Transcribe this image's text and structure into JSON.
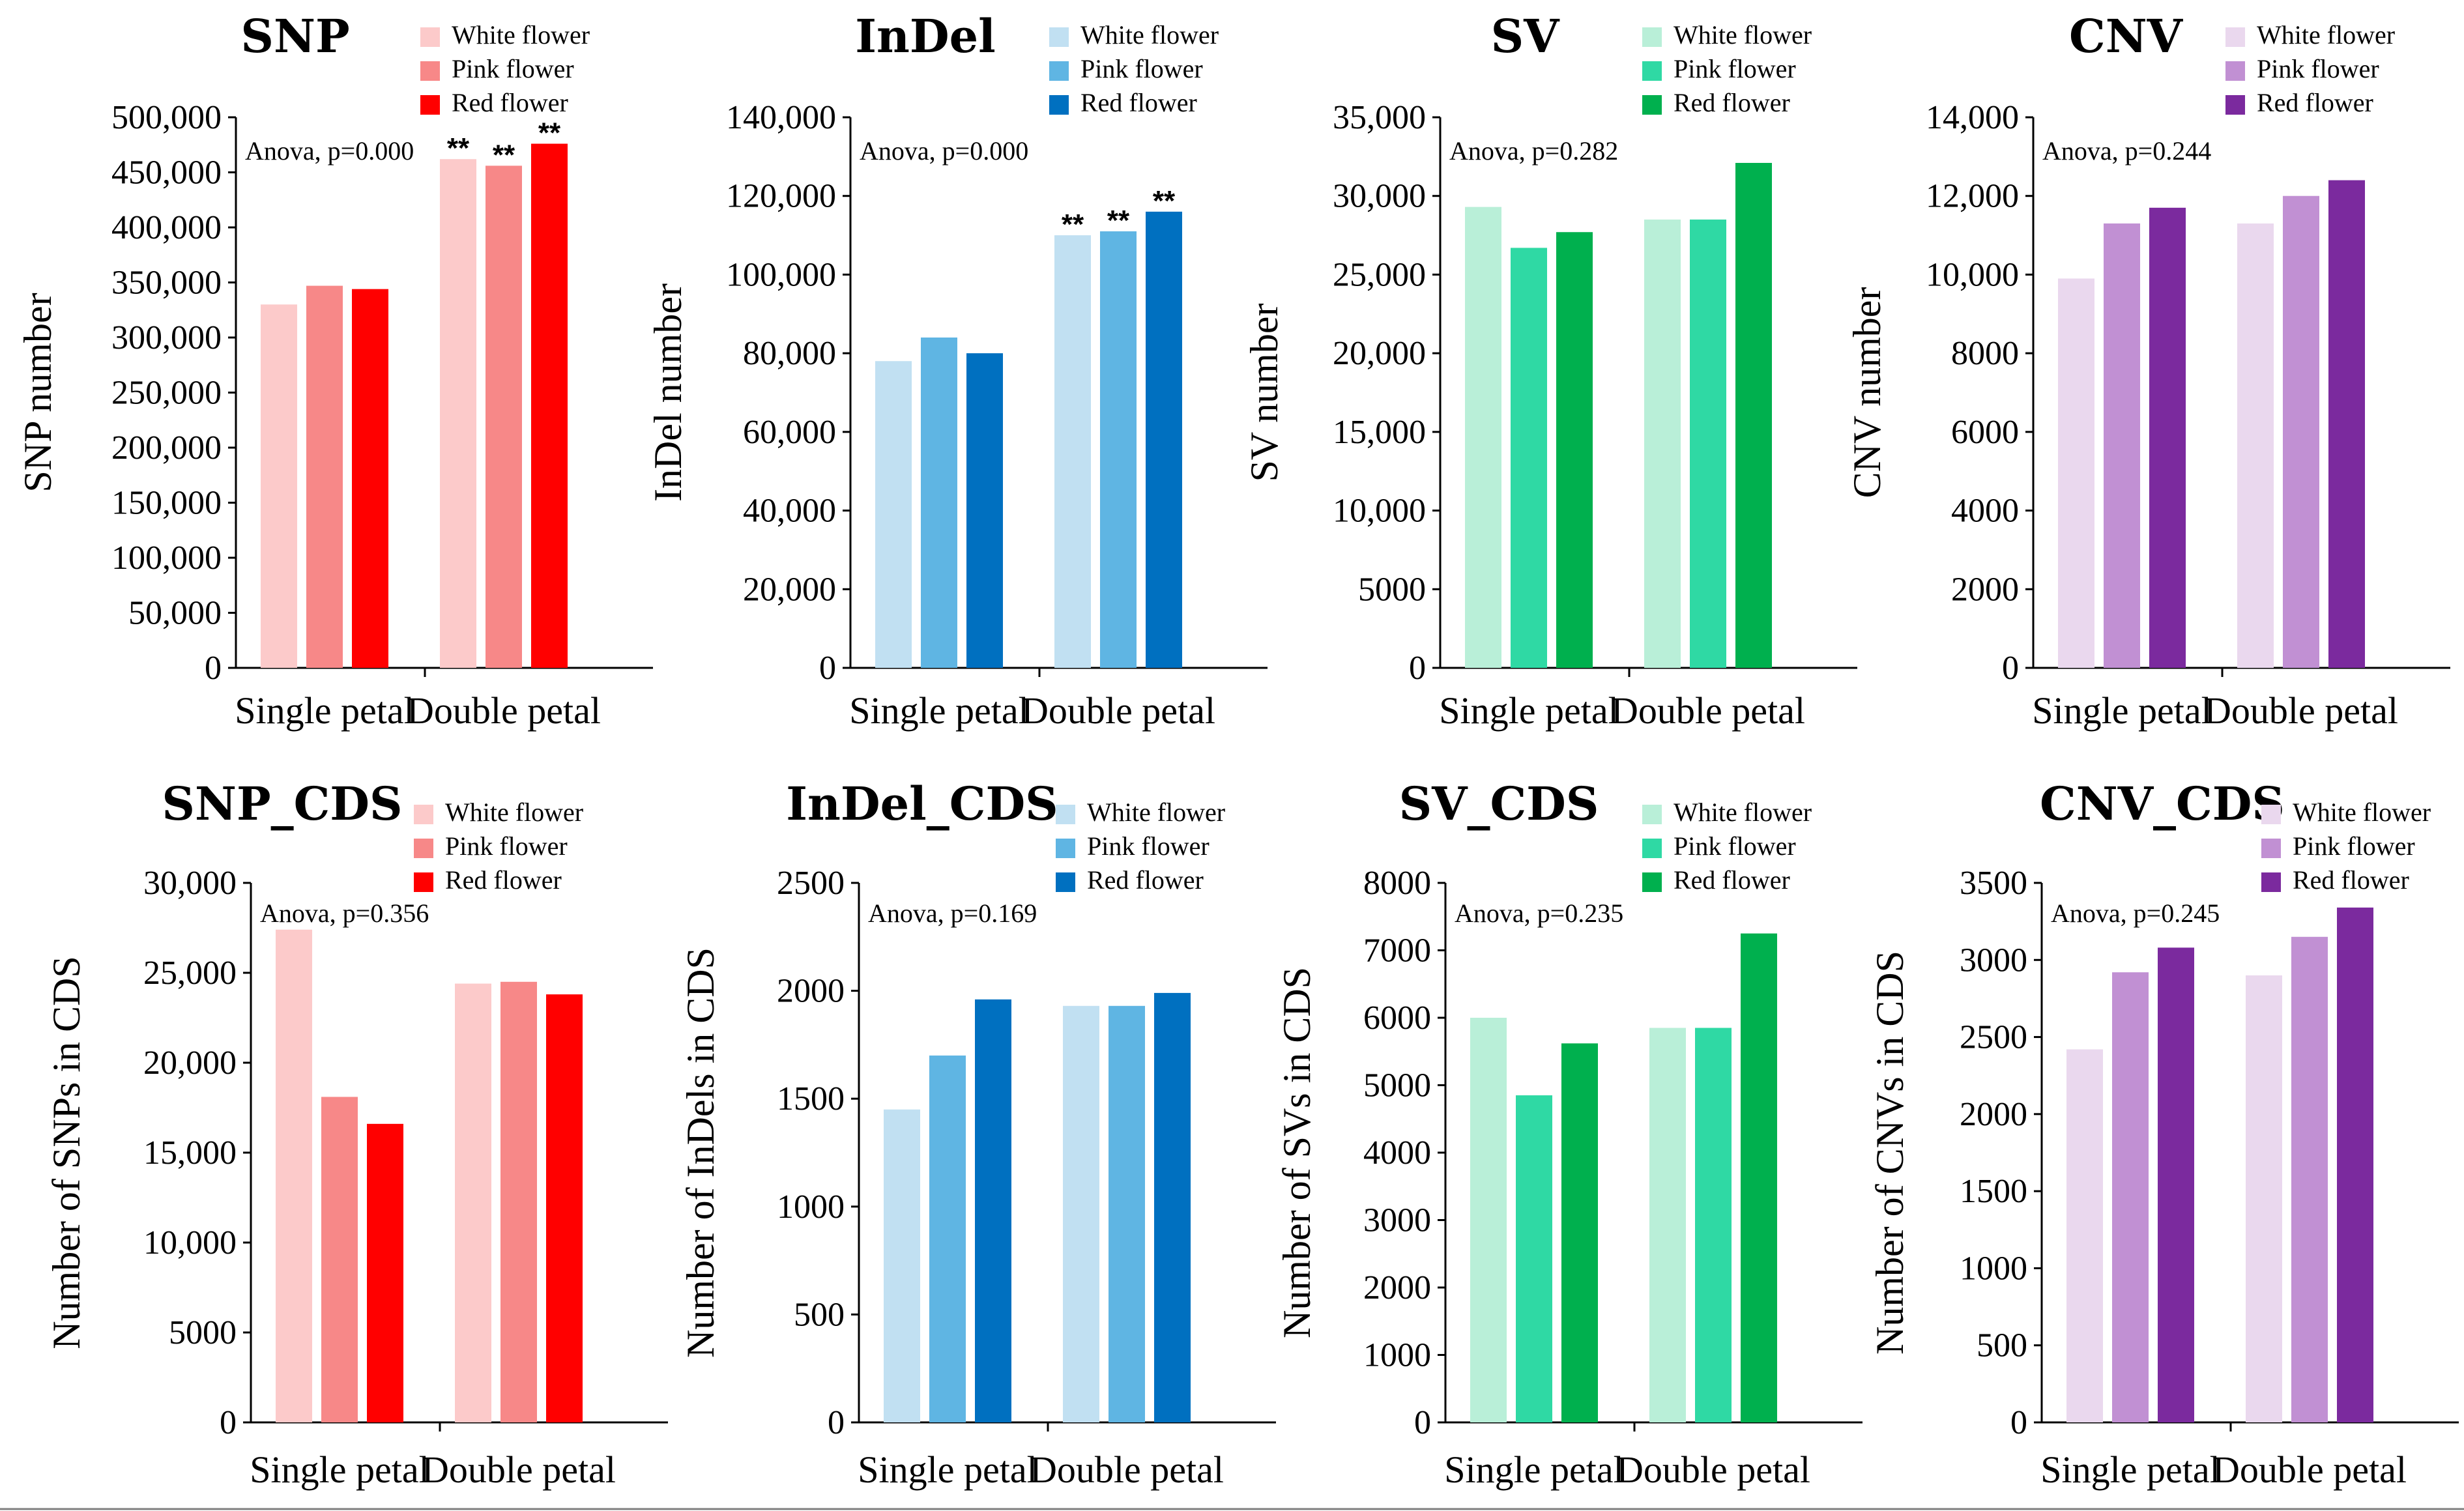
{
  "chart_data": [
    {
      "id": "snp",
      "type": "bar",
      "title": "SNP",
      "ylabel": "SNP number",
      "categories": [
        "Single petal",
        "Double petal"
      ],
      "ylim": [
        0,
        500000
      ],
      "ticks": [
        "0",
        "50,000",
        "100,000",
        "150,000",
        "200,000",
        "250,000",
        "300,000",
        "350,000",
        "400,000",
        "450,000",
        "500,000"
      ],
      "anova": "Anova, p=0.000",
      "legend": [
        "White flower",
        "Pink flower",
        "Red flower"
      ],
      "colors": [
        "#fccaca",
        "#f78888",
        "#ff0000"
      ],
      "series": [
        {
          "name": "White flower",
          "values": [
            330000,
            462000
          ]
        },
        {
          "name": "Pink flower",
          "values": [
            347000,
            456000
          ]
        },
        {
          "name": "Red flower",
          "values": [
            344000,
            476000
          ]
        }
      ],
      "significance": [
        [
          "",
          "",
          ""
        ],
        [
          "**",
          "**",
          "**"
        ]
      ]
    },
    {
      "id": "indel",
      "type": "bar",
      "title": "InDel",
      "ylabel": "InDel number",
      "categories": [
        "Single petal",
        "Double petal"
      ],
      "ylim": [
        0,
        140000
      ],
      "ticks": [
        "0",
        "20,000",
        "40,000",
        "60,000",
        "80,000",
        "100,000",
        "120,000",
        "140,000"
      ],
      "anova": "Anova, p=0.000",
      "legend": [
        "White flower",
        "Pink flower",
        "Red flower"
      ],
      "colors": [
        "#c1e0f2",
        "#5fb5e3",
        "#0070c0"
      ],
      "series": [
        {
          "name": "White flower",
          "values": [
            78000,
            110000
          ]
        },
        {
          "name": "Pink flower",
          "values": [
            84000,
            111000
          ]
        },
        {
          "name": "Red flower",
          "values": [
            80000,
            116000
          ]
        }
      ],
      "significance": [
        [
          "",
          "",
          ""
        ],
        [
          "**",
          "**",
          "**"
        ]
      ]
    },
    {
      "id": "sv",
      "type": "bar",
      "title": "SV",
      "ylabel": "SV number",
      "categories": [
        "Single petal",
        "Double petal"
      ],
      "ylim": [
        0,
        35000
      ],
      "ticks": [
        "0",
        "5000",
        "10,000",
        "15,000",
        "20,000",
        "25,000",
        "30,000",
        "35,000"
      ],
      "anova": "Anova, p=0.282",
      "legend": [
        "White flower",
        "Pink flower",
        "Red flower"
      ],
      "colors": [
        "#b9efd8",
        "#2fd9a4",
        "#00b04e"
      ],
      "series": [
        {
          "name": "White flower",
          "values": [
            29300,
            28500
          ]
        },
        {
          "name": "Pink flower",
          "values": [
            26700,
            28500
          ]
        },
        {
          "name": "Red flower",
          "values": [
            27700,
            32100
          ]
        }
      ]
    },
    {
      "id": "cnv",
      "type": "bar",
      "title": "CNV",
      "ylabel": "CNV number",
      "categories": [
        "Single petal",
        "Double petal"
      ],
      "ylim": [
        0,
        14000
      ],
      "ticks": [
        "0",
        "2000",
        "4000",
        "6000",
        "8000",
        "10,000",
        "12,000",
        "14,000"
      ],
      "anova": "Anova, p=0.244",
      "legend": [
        "White flower",
        "Pink flower",
        "Red flower"
      ],
      "colors": [
        "#ead8ee",
        "#c190d3",
        "#7b2a9e"
      ],
      "series": [
        {
          "name": "White flower",
          "values": [
            9900,
            11300
          ]
        },
        {
          "name": "Pink flower",
          "values": [
            11300,
            12000
          ]
        },
        {
          "name": "Red flower",
          "values": [
            11700,
            12400
          ]
        }
      ]
    },
    {
      "id": "snp-cds",
      "type": "bar",
      "title": "SNP_CDS",
      "ylabel": "Number of SNPs in CDS",
      "categories": [
        "Single petal",
        "Double petal"
      ],
      "ylim": [
        0,
        30000
      ],
      "ticks": [
        "0",
        "5000",
        "10,000",
        "15,000",
        "20,000",
        "25,000",
        "30,000"
      ],
      "anova": "Anova, p=0.356",
      "legend": [
        "White flower",
        "Pink flower",
        "Red flower"
      ],
      "colors": [
        "#fccaca",
        "#f78888",
        "#ff0000"
      ],
      "series": [
        {
          "name": "White flower",
          "values": [
            27400,
            24400
          ]
        },
        {
          "name": "Pink flower",
          "values": [
            18100,
            24500
          ]
        },
        {
          "name": "Red flower",
          "values": [
            16600,
            23800
          ]
        }
      ]
    },
    {
      "id": "indel-cds",
      "type": "bar",
      "title": "InDel_CDS",
      "ylabel": "Number of InDels in CDS",
      "categories": [
        "Single petal",
        "Double petal"
      ],
      "ylim": [
        0,
        2500
      ],
      "ticks": [
        "0",
        "500",
        "1000",
        "1500",
        "2000",
        "2500"
      ],
      "anova": "Anova, p=0.169",
      "legend": [
        "White flower",
        "Pink flower",
        "Red flower"
      ],
      "colors": [
        "#c1e0f2",
        "#5fb5e3",
        "#0070c0"
      ],
      "series": [
        {
          "name": "White flower",
          "values": [
            1450,
            1930
          ]
        },
        {
          "name": "Pink flower",
          "values": [
            1700,
            1930
          ]
        },
        {
          "name": "Red flower",
          "values": [
            1960,
            1990
          ]
        }
      ]
    },
    {
      "id": "sv-cds",
      "type": "bar",
      "title": "SV_CDS",
      "ylabel": "Number of SVs in CDS",
      "categories": [
        "Single petal",
        "Double petal"
      ],
      "ylim": [
        0,
        8000
      ],
      "ticks": [
        "0",
        "1000",
        "2000",
        "3000",
        "4000",
        "5000",
        "6000",
        "7000",
        "8000"
      ],
      "anova": "Anova, p=0.235",
      "legend": [
        "White flower",
        "Pink flower",
        "Red flower"
      ],
      "colors": [
        "#b9efd8",
        "#2fd9a4",
        "#00b04e"
      ],
      "series": [
        {
          "name": "White flower",
          "values": [
            6000,
            5850
          ]
        },
        {
          "name": "Pink flower",
          "values": [
            4850,
            5850
          ]
        },
        {
          "name": "Red flower",
          "values": [
            5620,
            7250
          ]
        }
      ]
    },
    {
      "id": "cnv-cds",
      "type": "bar",
      "title": "CNV_CDS",
      "ylabel": "Number of CNVs  in CDS",
      "categories": [
        "Single petal",
        "Double petal"
      ],
      "ylim": [
        0,
        3500
      ],
      "ticks": [
        "0",
        "500",
        "1000",
        "1500",
        "2000",
        "2500",
        "3000",
        "3500"
      ],
      "anova": "Anova, p=0.245",
      "legend": [
        "White flower",
        "Pink flower",
        "Red flower"
      ],
      "colors": [
        "#ead8ee",
        "#c190d3",
        "#7b2a9e"
      ],
      "series": [
        {
          "name": "White flower",
          "values": [
            2420,
            2900
          ]
        },
        {
          "name": "Pink flower",
          "values": [
            2920,
            3150
          ]
        },
        {
          "name": "Red flower",
          "values": [
            3080,
            3340
          ]
        }
      ]
    }
  ]
}
